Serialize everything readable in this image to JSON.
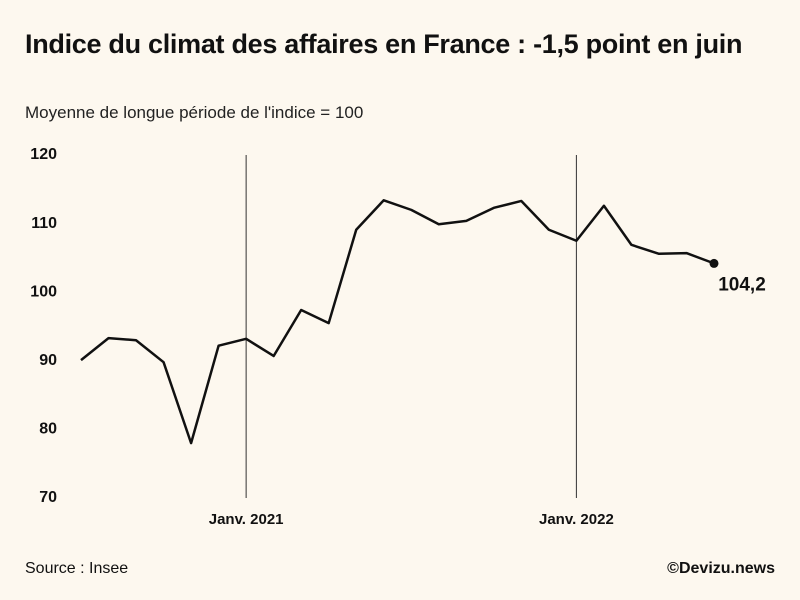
{
  "chart_data": {
    "type": "line",
    "title": "Indice du climat des affaires en France : -1,5 point en juin",
    "subtitle": "Moyenne de longue période de l'indice = 100",
    "source": "Source : Insee",
    "credit": "©Devizu.news",
    "categories": [
      null,
      null,
      null,
      null,
      null,
      null,
      "Janv. 2021",
      null,
      null,
      null,
      null,
      null,
      null,
      null,
      null,
      null,
      null,
      null,
      "Janv. 2022",
      null,
      null,
      null,
      null,
      null
    ],
    "series": [
      {
        "name": "Indice du climat des affaires",
        "color": "#111111",
        "values": [
          90.1,
          93.3,
          93.0,
          89.8,
          78.0,
          92.2,
          93.2,
          90.7,
          97.4,
          95.5,
          109.1,
          113.4,
          112.0,
          109.9,
          110.4,
          112.3,
          113.3,
          109.1,
          107.5,
          112.6,
          106.9,
          105.6,
          105.7,
          104.2
        ],
        "value_labels": [
          null,
          null,
          null,
          null,
          null,
          null,
          null,
          null,
          null,
          null,
          null,
          null,
          null,
          null,
          null,
          null,
          null,
          null,
          null,
          null,
          null,
          null,
          null,
          "104,2"
        ]
      }
    ],
    "ylim": [
      70,
      120
    ],
    "yticks": [
      70,
      80,
      90,
      100,
      110,
      120
    ],
    "grid": false
  }
}
